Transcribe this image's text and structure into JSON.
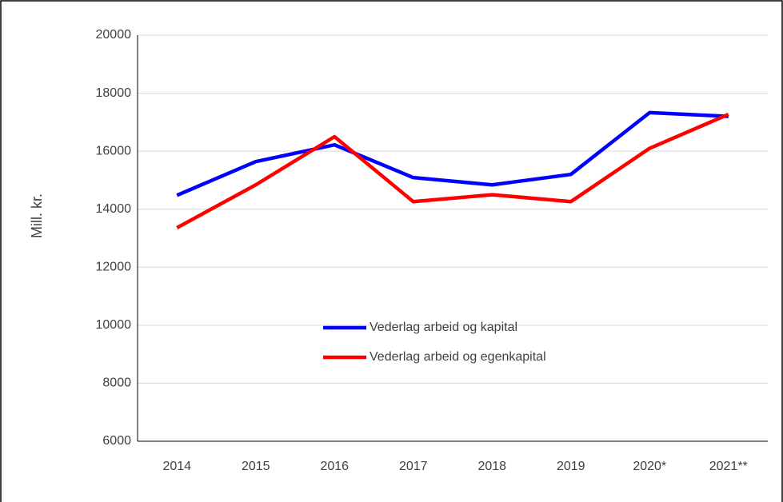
{
  "chart_data": {
    "type": "line",
    "y_label": "Mill. kr.",
    "categories": [
      "2014",
      "2015",
      "2016",
      "2017",
      "2018",
      "2019",
      "2020*",
      "2021**"
    ],
    "series": [
      {
        "name": "Vederlag arbeid og kapital",
        "color": "#0000ff",
        "values": [
          14480,
          15640,
          16220,
          15090,
          14840,
          15200,
          17330,
          17200
        ]
      },
      {
        "name": "Vederlag arbeid og egenkapital",
        "color": "#ff0000",
        "values": [
          13360,
          14840,
          16500,
          14260,
          14500,
          14260,
          16100,
          17270
        ]
      }
    ],
    "ylim": [
      6000,
      20000
    ],
    "yticks": [
      6000,
      8000,
      10000,
      12000,
      14000,
      16000,
      18000,
      20000
    ],
    "grid": true
  }
}
